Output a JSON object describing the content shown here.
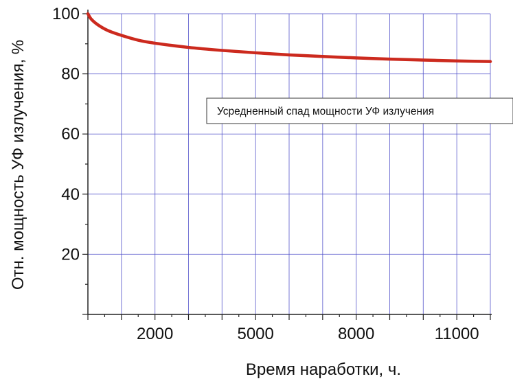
{
  "chart_data": {
    "type": "line",
    "title": "",
    "xlabel": "Время наработки, ч.",
    "ylabel": "Отн. мощность УФ излучения, %",
    "xlim": [
      0,
      12000
    ],
    "ylim": [
      0,
      100
    ],
    "x_tick_labels": [
      {
        "value": 2000,
        "label": "2000"
      },
      {
        "value": 5000,
        "label": "5000"
      },
      {
        "value": 8000,
        "label": "8000"
      },
      {
        "value": 11000,
        "label": "11000"
      }
    ],
    "y_tick_labels": [
      {
        "value": 20,
        "label": "20"
      },
      {
        "value": 40,
        "label": "40"
      },
      {
        "value": 60,
        "label": "60"
      },
      {
        "value": 80,
        "label": "80"
      },
      {
        "value": 100,
        "label": "100"
      }
    ],
    "grid": true,
    "legend_position": "upper-right",
    "colors": {
      "line": "#cc2a1e",
      "grid": "#4a4ac8",
      "axis": "#222222"
    },
    "series": [
      {
        "name": "Усредненный спад мощности УФ излучения",
        "x": [
          0,
          100,
          300,
          600,
          1000,
          1500,
          2000,
          3000,
          4000,
          5000,
          6000,
          7000,
          8000,
          9000,
          10000,
          11000,
          12000
        ],
        "y": [
          100,
          98.2,
          96.3,
          94.4,
          92.8,
          91.2,
          90.2,
          88.8,
          87.8,
          87.0,
          86.3,
          85.8,
          85.3,
          84.9,
          84.6,
          84.3,
          84.1
        ]
      }
    ]
  }
}
